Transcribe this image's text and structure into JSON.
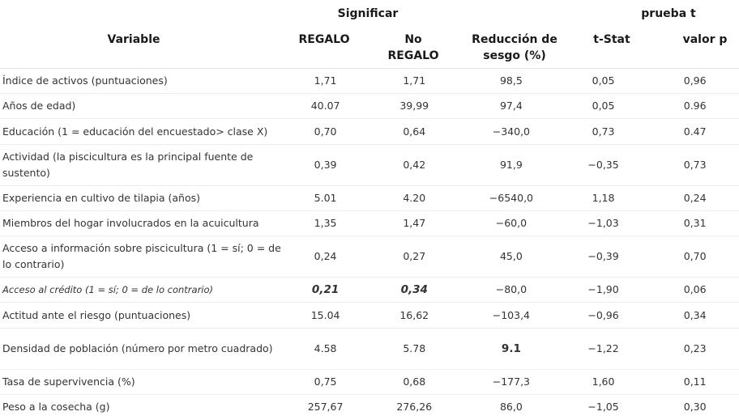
{
  "header": {
    "group_mean": "Significar",
    "group_ttest": "prueba  t",
    "col_variable": "Variable",
    "col_regalo": "REGALO",
    "col_no_regalo": "No REGALO",
    "col_reduccion": "Reducción de sesgo (%)",
    "col_tstat": "t-Stat",
    "col_pvalue": "valor p"
  },
  "rows": [
    {
      "variable": "Índice de activos (puntuaciones)",
      "regalo": "1,71",
      "no_regalo": "1,71",
      "reduccion": "98,5",
      "tstat": "0,05",
      "p": "0,96"
    },
    {
      "variable": "Años de edad)",
      "regalo": "40.07",
      "no_regalo": "39,99",
      "reduccion": "97,4",
      "tstat": "0,05",
      "p": "0.96"
    },
    {
      "variable": "Educación (1 = educación del encuestado> clase X)",
      "regalo": "0,70",
      "no_regalo": "0,64",
      "reduccion": "−340,0",
      "tstat": "0,73",
      "p": "0.47"
    },
    {
      "variable": "Actividad (la piscicultura es la principal fuente de sustento)",
      "regalo": "0,39",
      "no_regalo": "0,42",
      "reduccion": "91,9",
      "tstat": "−0,35",
      "p": "0,73"
    },
    {
      "variable": "Experiencia en cultivo de tilapia (años)",
      "regalo": "5.01",
      "no_regalo": "4.20",
      "reduccion": "−6540,0",
      "tstat": "1,18",
      "p": "0,24"
    },
    {
      "variable": "Miembros del hogar involucrados en la acuicultura",
      "regalo": "1,35",
      "no_regalo": "1,47",
      "reduccion": "−60,0",
      "tstat": "−1,03",
      "p": "0,31"
    },
    {
      "variable": "Acceso a información sobre piscicultura (1 = sí; 0 = de lo contrario)",
      "regalo": "0,24",
      "no_regalo": "0,27",
      "reduccion": "45,0",
      "tstat": "−0,39",
      "p": "0,70"
    },
    {
      "variable": "Acceso al crédito (1  =  sí; 0  = de lo  contrario)",
      "regalo": "0,21",
      "no_regalo": "0,34",
      "reduccion": "−80,0",
      "tstat": "−1,90",
      "p": "0,06"
    },
    {
      "variable": "Actitud ante el riesgo (puntuaciones)",
      "regalo": "15.04",
      "no_regalo": "16,62",
      "reduccion": "−103,4",
      "tstat": "−0,96",
      "p": "0,34"
    },
    {
      "variable": "Densidad de población (número por metro cuadrado)",
      "regalo": "4.58",
      "no_regalo": "5.78",
      "reduccion": "9.1",
      "tstat": "−1,22",
      "p": "0,23"
    },
    {
      "variable": "Tasa de supervivencia (%)",
      "regalo": "0,75",
      "no_regalo": "0,68",
      "reduccion": "−177,3",
      "tstat": "1,60",
      "p": "0,11"
    },
    {
      "variable": "Peso a la cosecha (g)",
      "regalo": "257,67",
      "no_regalo": "276,26",
      "reduccion": "86,0",
      "tstat": "−1,05",
      "p": "0,30"
    }
  ]
}
